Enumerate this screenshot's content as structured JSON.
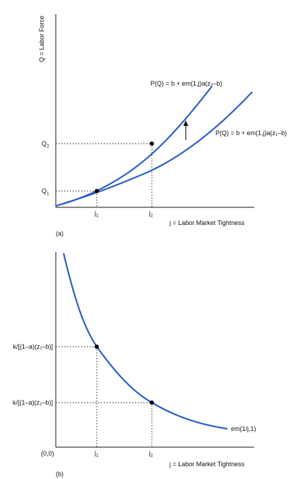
{
  "colors": {
    "curve": "#2c5fc5",
    "axis": "#111111",
    "point": "#000000"
  },
  "panel_a": {
    "y_axis_label": "Q = Labor Force",
    "x_axis_label": "j = Labor Market Tightness",
    "ticks_y": [
      {
        "main": "Q",
        "sub": "2"
      },
      {
        "main": "Q",
        "sub": "1"
      }
    ],
    "ticks_x": [
      {
        "main": "j",
        "sub": "1"
      },
      {
        "main": "j",
        "sub": "2"
      }
    ],
    "curve_upper_label": "P(Q) = b + em(1,j)a(z₂–b)",
    "curve_lower_label": "P(Q) = b + em(1,j)a(z₁–b)",
    "panel_label": "(a)",
    "shift_arrow": "up-arrow"
  },
  "panel_b": {
    "x_axis_label": "j = Labor Market Tightness",
    "origin_label": "(0,0)",
    "ticks_y": [
      "k/[(1–a)(z₁–b)]",
      "k/[(1–a)(z₂–b)]"
    ],
    "ticks_x": [
      {
        "main": "j",
        "sub": "1"
      },
      {
        "main": "j",
        "sub": "2"
      }
    ],
    "curve_label": "em(1/j,1)",
    "panel_label": "(b)"
  }
}
